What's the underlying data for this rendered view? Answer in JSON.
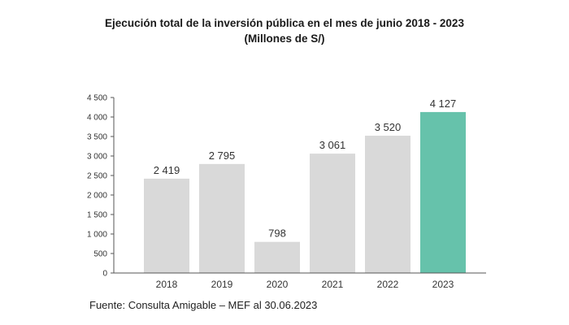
{
  "chart_data": {
    "type": "bar",
    "title": "Ejecución total de la inversión pública en el mes de junio 2018 - 2023",
    "subtitle": "(Millones de S/)",
    "categories": [
      "2018",
      "2019",
      "2020",
      "2021",
      "2022",
      "2023"
    ],
    "values": [
      2419,
      2795,
      798,
      3061,
      3520,
      4127
    ],
    "data_labels": [
      "2 419",
      "2 795",
      "798",
      "3 061",
      "3 520",
      "4 127"
    ],
    "ylim": [
      0,
      4500
    ],
    "yticks": [
      0,
      500,
      1000,
      1500,
      2000,
      2500,
      3000,
      3500,
      4000,
      4500
    ],
    "ytick_labels": [
      "0",
      "500",
      "1 000",
      "1 500",
      "2 000",
      "2 500",
      "3 000",
      "3 500",
      "4 000",
      "4 500"
    ],
    "xlabel": "",
    "ylabel": "",
    "grid": false,
    "colors": {
      "default_bar": "#d9d9d9",
      "highlight_bar": "#66c2ab",
      "axis": "#555555"
    },
    "highlight_category": "2023"
  },
  "footer": {
    "source": "Fuente: Consulta Amigable – MEF al 30.06.2023"
  }
}
